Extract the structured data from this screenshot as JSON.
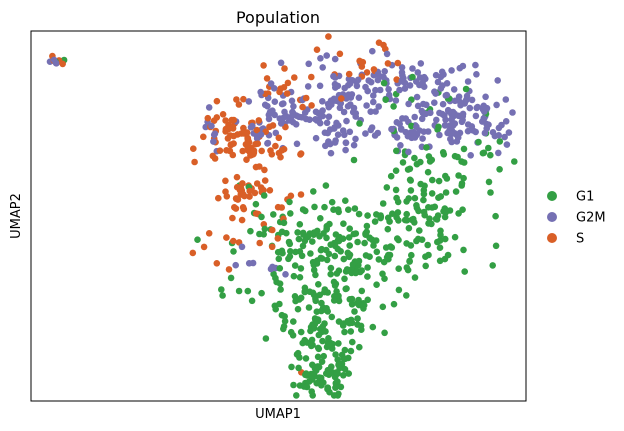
{
  "chart_data": {
    "type": "scatter",
    "title": "Population",
    "xlabel": "UMAP1",
    "ylabel": "UMAP2",
    "xlim": [
      0,
      100
    ],
    "ylim": [
      0,
      100
    ],
    "ticks": false,
    "grid": false,
    "legend_placement": "right",
    "series": [
      {
        "name": "G1",
        "color": "#339f44",
        "clusters": [
          {
            "center": [
              65,
              40
            ],
            "spread": [
              12,
              4
            ],
            "n": 90
          },
          {
            "center": [
              80,
              57
            ],
            "spread": [
              6,
              6
            ],
            "n": 85
          },
          {
            "center": [
              66,
              49
            ],
            "spread": [
              10,
              4
            ],
            "n": 60
          },
          {
            "center": [
              56,
              27
            ],
            "spread": [
              7,
              7
            ],
            "n": 70
          },
          {
            "center": [
              63,
              28
            ],
            "spread": [
              5,
              10
            ],
            "n": 55
          },
          {
            "center": [
              58,
              16
            ],
            "spread": [
              4,
              7
            ],
            "n": 55
          },
          {
            "center": [
              60,
              7
            ],
            "spread": [
              3,
              3
            ],
            "n": 60
          },
          {
            "center": [
              52,
              44
            ],
            "spread": [
              6,
              9
            ],
            "n": 30
          },
          {
            "center": [
              79,
              82
            ],
            "spread": [
              7,
              5
            ],
            "n": 18
          },
          {
            "center": [
              92,
              68
            ],
            "spread": [
              2,
              3
            ],
            "n": 8
          },
          {
            "center": [
              5.4,
              91.6
            ],
            "spread": [
              0.8,
              0.5
            ],
            "n": 3
          }
        ]
      },
      {
        "name": "G2M",
        "color": "#7570b3",
        "clusters": [
          {
            "center": [
              71,
              86
            ],
            "spread": [
              10,
              4
            ],
            "n": 100
          },
          {
            "center": [
              87,
              77
            ],
            "spread": [
              6,
              4
            ],
            "n": 80
          },
          {
            "center": [
              62,
              75
            ],
            "spread": [
              8,
              4
            ],
            "n": 75
          },
          {
            "center": [
              52,
              79
            ],
            "spread": [
              5,
              4
            ],
            "n": 35
          },
          {
            "center": [
              80,
              73
            ],
            "spread": [
              8,
              3
            ],
            "n": 50
          },
          {
            "center": [
              45,
              74
            ],
            "spread": [
              3,
              2
            ],
            "n": 14
          },
          {
            "center": [
              44,
              37
            ],
            "spread": [
              6,
              1.5
            ],
            "n": 8
          },
          {
            "center": [
              37,
              71
            ],
            "spread": [
              1,
              3
            ],
            "n": 8
          },
          {
            "center": [
              5,
              92
            ],
            "spread": [
              0.7,
              0.5
            ],
            "n": 5
          }
        ]
      },
      {
        "name": "S",
        "color": "#d95f27",
        "clusters": [
          {
            "center": [
              44,
              70
            ],
            "spread": [
              5,
              5
            ],
            "n": 60
          },
          {
            "center": [
              40,
              73
            ],
            "spread": [
              3,
              3
            ],
            "n": 25
          },
          {
            "center": [
              44,
              55
            ],
            "spread": [
              3,
              3
            ],
            "n": 25
          },
          {
            "center": [
              54,
              86
            ],
            "spread": [
              6,
              4
            ],
            "n": 22
          },
          {
            "center": [
              68,
              92
            ],
            "spread": [
              6,
              3
            ],
            "n": 16
          },
          {
            "center": [
              46,
              48
            ],
            "spread": [
              5,
              6
            ],
            "n": 25
          },
          {
            "center": [
              55,
              8
            ],
            "spread": [
              0.5,
              0.5
            ],
            "n": 1
          },
          {
            "center": [
              36,
              40
            ],
            "spread": [
              2,
              2
            ],
            "n": 3
          },
          {
            "center": [
              5.4,
              92.2
            ],
            "spread": [
              0.8,
              0.5
            ],
            "n": 4
          }
        ]
      }
    ]
  }
}
